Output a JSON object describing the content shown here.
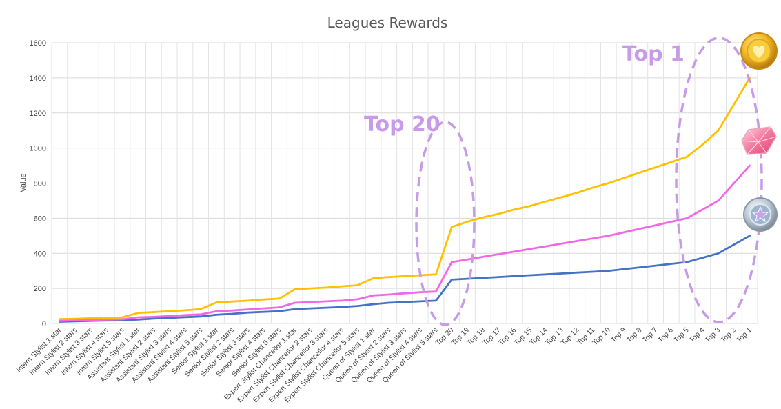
{
  "chart_data": {
    "type": "line",
    "title": "Leagues Rewards",
    "xlabel": "",
    "ylabel": "Value",
    "ylim": [
      0,
      1600
    ],
    "yticks": [
      0,
      200,
      400,
      600,
      800,
      1000,
      1200,
      1400,
      1600
    ],
    "grid": true,
    "legend": "none",
    "categories": [
      "Intern Stylist 1 star",
      "Intern Stylist 2 stars",
      "Intern Stylist 3 stars",
      "Intern Stylist 4 stars",
      "Intern Stylist 5 stars",
      "Assistant Stylist 1 star",
      "Assistant Stylist 2 stars",
      "Assistant Stylist 3 stars",
      "Assistant Stylist 4 stars",
      "Assistant Stylist 5 stars",
      "Senior Stylist 1 star",
      "Senior Stylist 2 stars",
      "Senior Stylist 3 stars",
      "Senior Stylist 4 stars",
      "Senior Stylist 5 stars",
      "Expert Stylist Chancellor 1 star",
      "Expert Stylist Chancellor 2 stars",
      "Expert Stylist Chancellor 3 stars",
      "Expert Stylist Chancellor 4 stars",
      "Expert Stylist Chancellor 5 stars",
      "Queen of Stylist 1 star",
      "Queen of Stylist 2 stars",
      "Queen of Stylist 3 stars",
      "Queen of Stylist 4 stars",
      "Queen of Stylist 5 stars",
      "Top 20",
      "Top 19",
      "Top 18",
      "Top 17",
      "Top 16",
      "Top 15",
      "Top 14",
      "Top 13",
      "Top 12",
      "Top 11",
      "Top 10",
      "Top 9",
      "Top 8",
      "Top 7",
      "Top 6",
      "Top 5",
      "Top 4",
      "Top 3",
      "Top 2",
      "Top 1"
    ],
    "series": [
      {
        "color": "#4472c4",
        "values": [
          10,
          12,
          15,
          17,
          18,
          22,
          28,
          32,
          36,
          40,
          50,
          55,
          62,
          66,
          70,
          82,
          86,
          90,
          94,
          100,
          110,
          118,
          122,
          126,
          130,
          250,
          255,
          260,
          265,
          270,
          275,
          280,
          285,
          290,
          295,
          300,
          310,
          320,
          330,
          340,
          350,
          375,
          400,
          450,
          500
        ]
      },
      {
        "color": "#f266e8",
        "values": [
          15,
          18,
          20,
          22,
          24,
          35,
          38,
          42,
          48,
          52,
          70,
          74,
          80,
          86,
          92,
          118,
          122,
          126,
          130,
          138,
          160,
          165,
          172,
          178,
          182,
          350,
          365,
          380,
          395,
          410,
          425,
          440,
          455,
          470,
          485,
          500,
          520,
          540,
          560,
          580,
          600,
          650,
          700,
          800,
          900
        ]
      },
      {
        "color": "#ffc000",
        "values": [
          25,
          27,
          30,
          32,
          35,
          60,
          65,
          70,
          75,
          82,
          120,
          125,
          130,
          137,
          142,
          195,
          200,
          205,
          212,
          218,
          258,
          265,
          270,
          275,
          280,
          550,
          580,
          605,
          625,
          650,
          670,
          695,
          720,
          745,
          775,
          800,
          830,
          860,
          890,
          920,
          950,
          1020,
          1100,
          1250,
          1400
        ]
      }
    ],
    "annotations": [
      {
        "text": "Top 20"
      },
      {
        "text": "Top 1"
      }
    ],
    "icons": [
      "gold-coin-icon",
      "pink-diamond-icon",
      "silver-star-badge-icon"
    ]
  }
}
